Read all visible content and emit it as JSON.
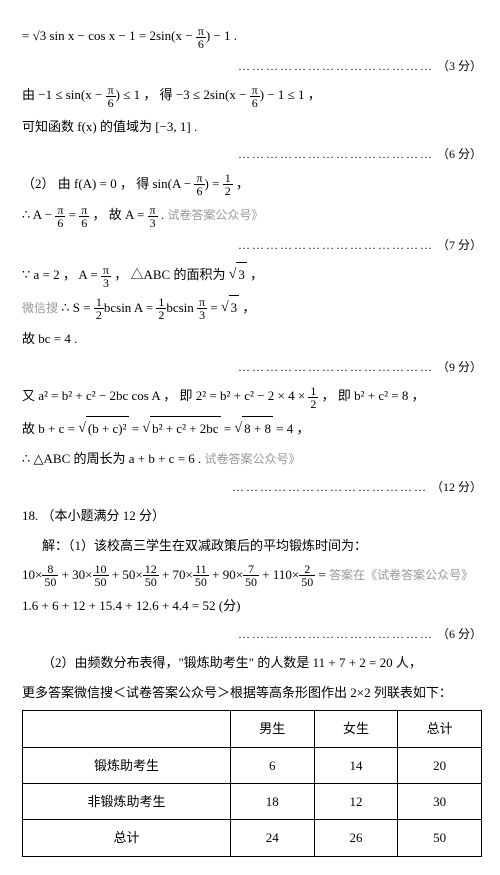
{
  "eq1": "= √3 sin x − cos x − 1 = 2sin",
  "eq1_tail": "− 1 .",
  "pts3": "（3 分）",
  "eq2a": "由 −1 ≤ sin",
  "eq2b": "≤ 1 ， 得 −3 ≤ 2sin",
  "eq2c": "− 1 ≤ 1 ，",
  "eq3": "可知函数 f(x) 的值域为 [−3,  1] .",
  "pts6": "（6 分）",
  "part2a": "（2） 由 f(A) = 0 ， 得 sin",
  "part2b": " ，",
  "eq4a": "∴ A −",
  "eq4b": " ， 故 A =",
  "eq4c": " .",
  "pts7": "（7 分）",
  "eq5a": "∵ a = 2 ， A =",
  "eq5b": " ， △ABC 的面积为 ",
  "eq5c": " ，",
  "eq6a": "∴ S =",
  "eq6b": "bcsin A =",
  "eq6c": "bcsin",
  "eq6d": " ，",
  "eq7": "故 bc = 4 .",
  "pts9": "（9 分）",
  "eq8a": "又 a² = b² + c² − 2bc cos A ， 即 2² = b² + c² − 2 × 4 ×",
  "eq8b": " ， 即 b² + c² = 8 ，",
  "eq9a": "故 b + c = ",
  "eq9b": " = ",
  "eq9c": " = ",
  "eq9d": " = 4 ，",
  "sq1": "(b + c)²",
  "sq2": "b² + c² + 2bc",
  "sq3": "8 + 8",
  "eq10": "∴ △ABC 的周长为 a + b + c = 6 .",
  "pts12": "（12 分）",
  "q18": "18. （本小题满分 12 分）",
  "q18_1": "解：（1）该校高三学生在双减政策后的平均锻炼时间为：",
  "calc1": "10×",
  "calc_plus": " + 30×",
  "calc_plus2": " + 50×",
  "calc_plus3": " + 70×",
  "calc_plus4": " + 90×",
  "calc_plus5": " + 110×",
  "calc_eq": " =",
  "calc2": "1.6 + 6 + 12 + 15.4 + 12.6 + 4.4 = 52 (分)",
  "q18_2a": "（2）由频数分布表得，\"锻炼助考生\" 的人数是 11 + 7 + 2 = 20 人，",
  "q18_2b": "更多答案微信搜＜试卷答案公众号＞根据等高条形图作出 2×2 列联表如下：",
  "f8": "8",
  "f50": "50",
  "f10": "10",
  "f12": "12",
  "f11": "11",
  "f7": "7",
  "f2": "2",
  "pi": "π",
  "six": "6",
  "three": "3",
  "half_n": "1",
  "half_d": "2",
  "sqrt3": "3",
  "table": {
    "h1": "",
    "h2": "男生",
    "h3": "女生",
    "h4": "总计",
    "r1c1": "锻炼助考生",
    "r1c2": "6",
    "r1c3": "14",
    "r1c4": "20",
    "r2c1": "非锻炼助考生",
    "r2c2": "18",
    "r2c3": "12",
    "r2c4": "30",
    "r3c1": "总计",
    "r3c2": "24",
    "r3c3": "26",
    "r3c4": "50"
  },
  "wm1": "试卷答案公众号》",
  "wm2": "微信搜",
  "wm3": "答案在《试卷答案公众号》"
}
